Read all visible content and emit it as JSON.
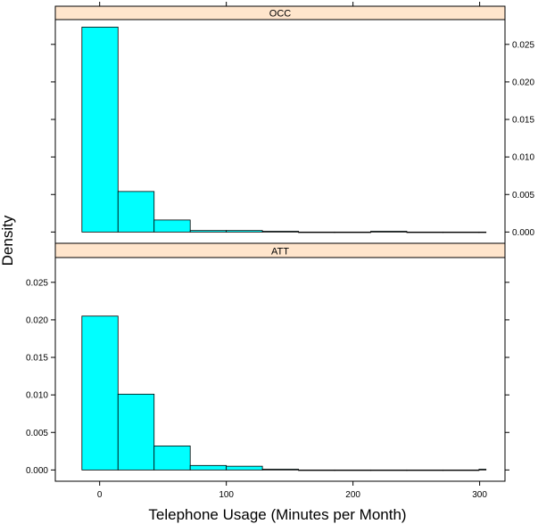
{
  "chart_data": {
    "type": "bar",
    "subtype": "histogram",
    "xlabel": "Telephone Usage (Minutes per Month)",
    "ylabel": "Density",
    "xlim": [
      -35,
      320
    ],
    "ylim": [
      -0.0015,
      0.0283
    ],
    "x_ticks": [
      0,
      100,
      200,
      300
    ],
    "x_tick_labels": [
      "0",
      "100",
      "200",
      "300"
    ],
    "y_ticks": [
      0.0,
      0.005,
      0.01,
      0.015,
      0.02,
      0.025
    ],
    "y_tick_labels": [
      "0.000",
      "0.005",
      "0.010",
      "0.015",
      "0.020",
      "0.025"
    ],
    "bin_edges": [
      -14,
      14.5,
      43,
      71.5,
      100,
      128.5,
      157,
      185.5,
      214,
      242.5,
      271,
      299.5,
      305
    ],
    "fill_color": "#00FFFF",
    "strip_color": "#FFE5CC",
    "panels": [
      {
        "name": "OCC",
        "values": [
          0.0273,
          0.0054,
          0.0016,
          0.0002,
          0.0002,
          0.0001,
          0.0,
          0.0,
          0.0001,
          0.0,
          0.0,
          0.0
        ]
      },
      {
        "name": "ATT",
        "values": [
          0.0205,
          0.0101,
          0.0032,
          0.0006,
          0.0005,
          0.0001,
          0.0,
          0.0,
          0.0,
          0.0,
          0.0,
          0.0001
        ]
      }
    ]
  }
}
